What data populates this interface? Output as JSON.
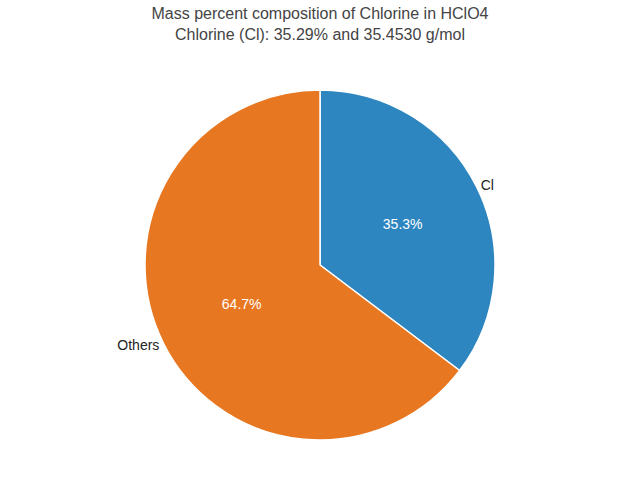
{
  "chart_data": {
    "type": "pie",
    "title": "Mass percent composition of Chlorine in HClO4",
    "subtitle": "Chlorine (Cl): 35.29% and 35.4530 g/mol",
    "categories": [
      "Cl",
      "Others"
    ],
    "values": [
      35.3,
      64.7
    ],
    "value_labels": [
      "35.3%",
      "64.7%"
    ],
    "colors": [
      "#2e86c1",
      "#e87722"
    ],
    "data_labels": true
  }
}
